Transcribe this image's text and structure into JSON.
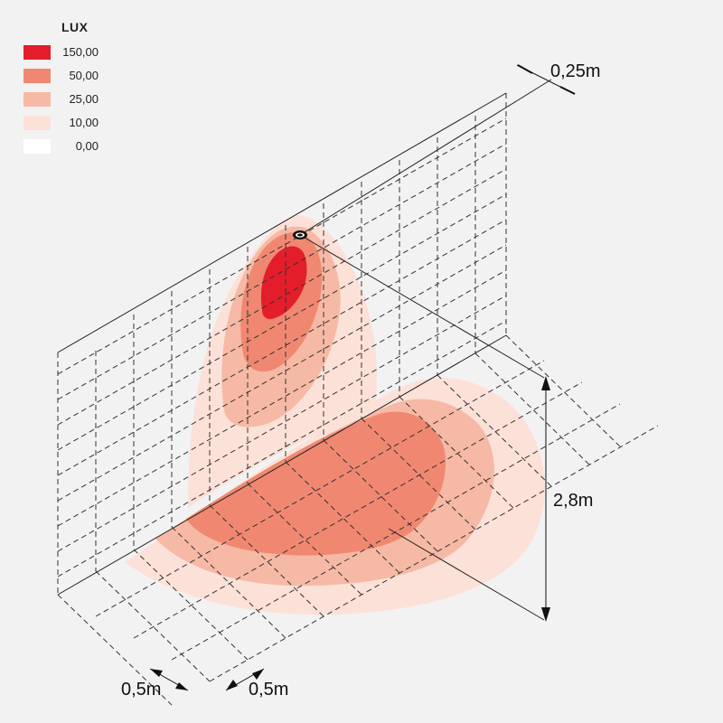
{
  "legend": {
    "title": "LUX",
    "items": [
      {
        "value": "150,00",
        "color": "#e31e2a"
      },
      {
        "value": "50,00",
        "color": "#f08871"
      },
      {
        "value": "25,00",
        "color": "#f6b9a5"
      },
      {
        "value": "10,00",
        "color": "#fce1d8"
      },
      {
        "value": "0,00",
        "color": "#ffffff"
      }
    ]
  },
  "dimensions": {
    "offset_top": "0,25m",
    "height": "2,8m",
    "grid_x": "0,5m",
    "grid_y": "0,5m"
  },
  "colors": {
    "background": "#f2f2f2",
    "line": "#333333",
    "lux_150": "#e31e2a",
    "lux_50": "#f08871",
    "lux_25": "#f6b9a5",
    "lux_10": "#fce1d8"
  }
}
